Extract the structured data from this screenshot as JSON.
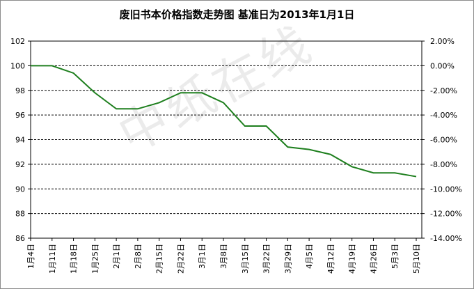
{
  "chart_data": {
    "type": "line",
    "title": "废旧书本价格指数走势图 基准日为2013年1月1日",
    "watermark": "中纸在线",
    "categories": [
      "1月4日",
      "1月11日",
      "1月18日",
      "1月25日",
      "2月1日",
      "2月8日",
      "2月15日",
      "2月22日",
      "3月1日",
      "3月8日",
      "3月15日",
      "3月22日",
      "3月29日",
      "4月5日",
      "4月12日",
      "4月19日",
      "4月26日",
      "5月3日",
      "5月10日"
    ],
    "series": [
      {
        "values": [
          100,
          100,
          99.4,
          97.8,
          96.5,
          96.5,
          97.0,
          97.8,
          97.8,
          97.0,
          95.1,
          95.1,
          93.4,
          93.2,
          92.8,
          91.8,
          91.3,
          91.3,
          91.0
        ]
      }
    ],
    "ylim": [
      86,
      102
    ],
    "y_ticks": [
      "102",
      "100",
      "98",
      "96",
      "94",
      "92",
      "90",
      "88",
      "86"
    ],
    "y2lim": [
      -14,
      2
    ],
    "y2_ticks": [
      "2.00%",
      "0.00%",
      "-2.00%",
      "-4.00%",
      "-6.00%",
      "-8.00%",
      "-10.00%",
      "-12.00%",
      "-14.00%"
    ],
    "grid": true,
    "line_color": "#1e7f1e",
    "grid_color": "#000000"
  }
}
